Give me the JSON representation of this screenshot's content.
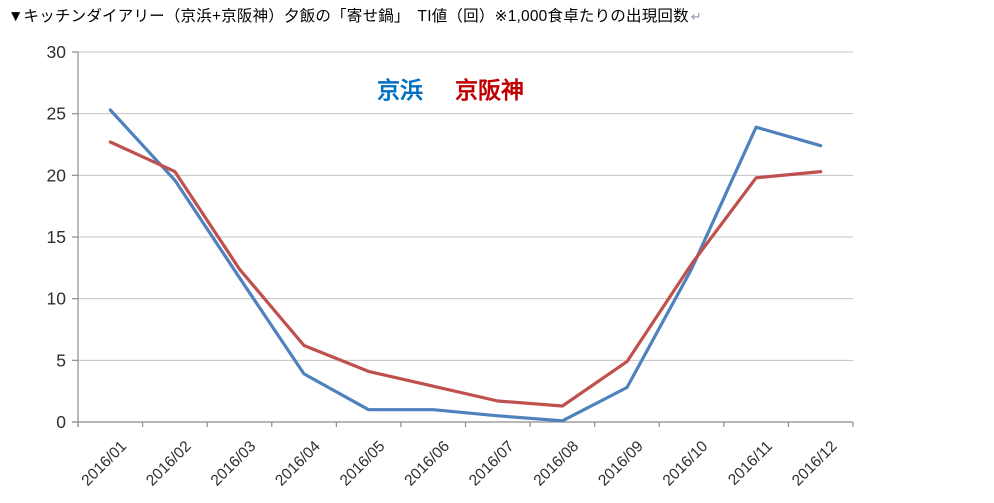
{
  "title": {
    "text": "▼キッチンダイアリー（京浜+京阪神）夕飯の「寄せ鍋」　TI値（回）※1,000食卓たりの出現回数",
    "return_mark": "↵"
  },
  "legend": {
    "items": [
      {
        "label": "京浜",
        "color": "#0070C0"
      },
      {
        "label": "京阪神",
        "color": "#C00000"
      }
    ]
  },
  "chart_data": {
    "type": "line",
    "title": "キッチンダイアリー（京浜+京阪神）夕飯の「寄せ鍋」 TI値（回） 1,000食卓たりの出現回数",
    "categories": [
      "2016/01",
      "2016/02",
      "2016/03",
      "2016/04",
      "2016/05",
      "2016/06",
      "2016/07",
      "2016/08",
      "2016/09",
      "2016/10",
      "2016/11",
      "2016/12"
    ],
    "series": [
      {
        "name": "京浜",
        "color": "#4F81BD",
        "values": [
          25.3,
          19.6,
          11.7,
          3.9,
          1.0,
          1.0,
          0.5,
          0.1,
          2.8,
          12.4,
          23.9,
          22.4
        ]
      },
      {
        "name": "京阪神",
        "color": "#C0504D",
        "values": [
          22.7,
          20.3,
          12.4,
          6.2,
          4.1,
          2.9,
          1.7,
          1.3,
          4.9,
          12.8,
          19.8,
          20.3
        ]
      }
    ],
    "xlabel": "",
    "ylabel": "",
    "ylim": [
      0,
      30
    ],
    "yticks": [
      0,
      5,
      10,
      15,
      20,
      25,
      30
    ],
    "grid": true,
    "legend_position": "top-center",
    "styles": {
      "grid_color": "#C3C3C3",
      "axis_color": "#8C8C8C",
      "tick_label_color": "#2e2e2e",
      "line_width": 3.2
    }
  }
}
